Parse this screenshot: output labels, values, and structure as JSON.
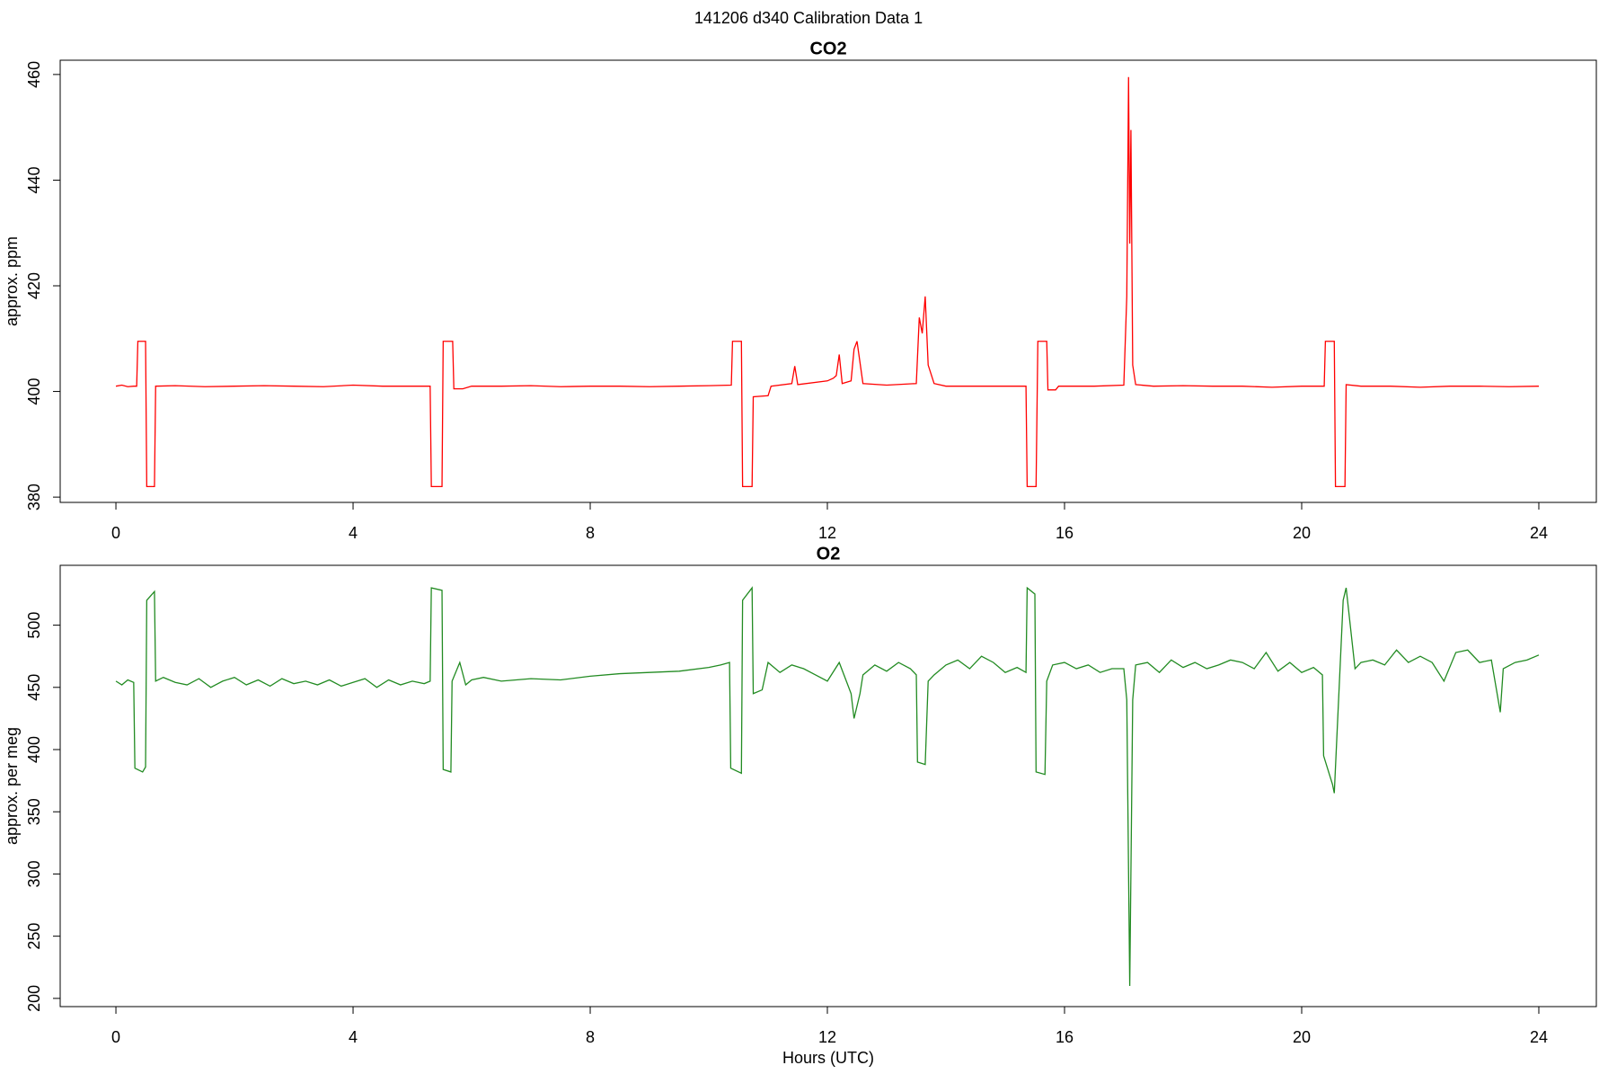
{
  "title": "141206   d340   Calibration Data 1",
  "chart_data": [
    {
      "type": "line",
      "title": "CO2",
      "ylabel": "approx. ppm",
      "xlim": [
        -0.94,
        24.97
      ],
      "xticks": [
        0,
        4,
        8,
        12,
        16,
        20,
        24
      ],
      "ylim": [
        379,
        462.7
      ],
      "yticks": [
        380,
        400,
        420,
        440,
        460
      ],
      "x": [
        0,
        0.1,
        0.2,
        0.3,
        0.35,
        0.37,
        0.5,
        0.52,
        0.65,
        0.67,
        1,
        1.5,
        2,
        2.5,
        3,
        3.5,
        4,
        4.5,
        5,
        5.3,
        5.32,
        5.5,
        5.52,
        5.68,
        5.7,
        5.85,
        6,
        6.5,
        7,
        7.5,
        8,
        8.5,
        9,
        9.5,
        10,
        10.38,
        10.4,
        10.55,
        10.57,
        10.73,
        10.75,
        11,
        11.05,
        11.4,
        11.45,
        11.5,
        12,
        12.1,
        12.15,
        12.2,
        12.25,
        12.4,
        12.45,
        12.5,
        12.6,
        13,
        13.5,
        13.55,
        13.6,
        13.65,
        13.7,
        13.8,
        14,
        14.5,
        15,
        15.35,
        15.37,
        15.52,
        15.55,
        15.7,
        15.72,
        15.85,
        15.9,
        16.5,
        17,
        17.05,
        17.08,
        17.1,
        17.12,
        17.15,
        17.2,
        17.5,
        18,
        18.5,
        19,
        19.5,
        20,
        20.38,
        20.4,
        20.55,
        20.57,
        20.73,
        20.75,
        21,
        21.5,
        22,
        22.5,
        23,
        23.5,
        24
      ],
      "series": [
        {
          "color": "#ff0000",
          "values": [
            401,
            401.2,
            400.9,
            401,
            401,
            409.5,
            409.5,
            382,
            382,
            401,
            401.1,
            400.9,
            401,
            401.1,
            401,
            400.9,
            401.2,
            401,
            401,
            401,
            382,
            382,
            409.5,
            409.5,
            400.5,
            400.5,
            401,
            401,
            401.1,
            400.9,
            401,
            401,
            400.9,
            401,
            401.1,
            401.2,
            409.5,
            409.5,
            382,
            382,
            399,
            399.2,
            401,
            401.5,
            404.8,
            401.3,
            402,
            402.5,
            403,
            407,
            401.5,
            402,
            408,
            409.5,
            401.5,
            401.2,
            401.5,
            414,
            411,
            418,
            405,
            401.5,
            401,
            401,
            401,
            401,
            382,
            382,
            409.5,
            409.5,
            400.3,
            400.3,
            401,
            401,
            401.2,
            418,
            459.5,
            428,
            449.5,
            405,
            401.3,
            401,
            401.1,
            401,
            401,
            400.8,
            401,
            401,
            409.5,
            409.5,
            382,
            382,
            401.3,
            401,
            401,
            400.8,
            401,
            401,
            400.9,
            401
          ]
        }
      ]
    },
    {
      "type": "line",
      "title": "O2",
      "ylabel": "approx. per meg",
      "xlabel": "Hours (UTC)",
      "xlim": [
        -0.94,
        24.97
      ],
      "xticks": [
        0,
        4,
        8,
        12,
        16,
        20,
        24
      ],
      "ylim": [
        193.4,
        548.1
      ],
      "yticks": [
        200,
        250,
        300,
        350,
        400,
        450,
        500
      ],
      "x": [
        0,
        0.1,
        0.2,
        0.3,
        0.32,
        0.45,
        0.5,
        0.52,
        0.65,
        0.67,
        0.8,
        1,
        1.2,
        1.4,
        1.6,
        1.8,
        2,
        2.2,
        2.4,
        2.6,
        2.8,
        3,
        3.2,
        3.4,
        3.6,
        3.8,
        4,
        4.2,
        4.4,
        4.6,
        4.8,
        5,
        5.2,
        5.3,
        5.32,
        5.5,
        5.52,
        5.65,
        5.67,
        5.8,
        5.9,
        6,
        6.2,
        6.5,
        7,
        7.5,
        8,
        8.5,
        9,
        9.5,
        10,
        10.2,
        10.35,
        10.37,
        10.55,
        10.57,
        10.73,
        10.75,
        10.9,
        11,
        11.2,
        11.4,
        11.6,
        11.8,
        12,
        12.2,
        12.4,
        12.45,
        12.55,
        12.6,
        12.8,
        13,
        13.2,
        13.4,
        13.5,
        13.52,
        13.65,
        13.7,
        13.8,
        14,
        14.2,
        14.4,
        14.6,
        14.8,
        15,
        15.2,
        15.35,
        15.37,
        15.5,
        15.52,
        15.67,
        15.7,
        15.8,
        16,
        16.2,
        16.4,
        16.6,
        16.8,
        17,
        17.05,
        17.1,
        17.15,
        17.2,
        17.4,
        17.6,
        17.8,
        18,
        18.2,
        18.4,
        18.6,
        18.8,
        19,
        19.2,
        19.4,
        19.6,
        19.8,
        20,
        20.2,
        20.35,
        20.37,
        20.52,
        20.55,
        20.7,
        20.75,
        20.9,
        21,
        21.2,
        21.4,
        21.6,
        21.8,
        22,
        22.2,
        22.4,
        22.6,
        22.8,
        23,
        23.2,
        23.35,
        23.4,
        23.6,
        23.8,
        24
      ],
      "series": [
        {
          "color": "#228b22",
          "values": [
            455,
            452,
            456,
            454,
            385,
            382,
            386,
            520,
            527,
            455,
            458,
            454,
            452,
            457,
            450,
            455,
            458,
            452,
            456,
            451,
            457,
            453,
            455,
            452,
            456,
            451,
            454,
            457,
            450,
            456,
            452,
            455,
            453,
            455,
            530,
            528,
            384,
            382,
            455,
            470,
            452,
            456,
            458,
            455,
            457,
            456,
            459,
            461,
            462,
            463,
            466,
            468,
            470,
            385,
            381,
            520,
            530,
            445,
            448,
            470,
            462,
            468,
            465,
            460,
            455,
            470,
            445,
            425,
            445,
            460,
            468,
            463,
            470,
            465,
            460,
            390,
            388,
            455,
            460,
            468,
            472,
            465,
            475,
            470,
            462,
            466,
            462,
            530,
            525,
            382,
            380,
            455,
            468,
            470,
            465,
            468,
            462,
            465,
            465,
            440,
            210,
            440,
            468,
            470,
            462,
            472,
            466,
            470,
            465,
            468,
            472,
            470,
            465,
            478,
            463,
            470,
            462,
            466,
            460,
            395,
            372,
            365,
            520,
            530,
            465,
            470,
            472,
            468,
            480,
            470,
            475,
            470,
            455,
            478,
            480,
            470,
            472,
            430,
            465,
            470,
            472,
            476
          ]
        }
      ]
    }
  ]
}
